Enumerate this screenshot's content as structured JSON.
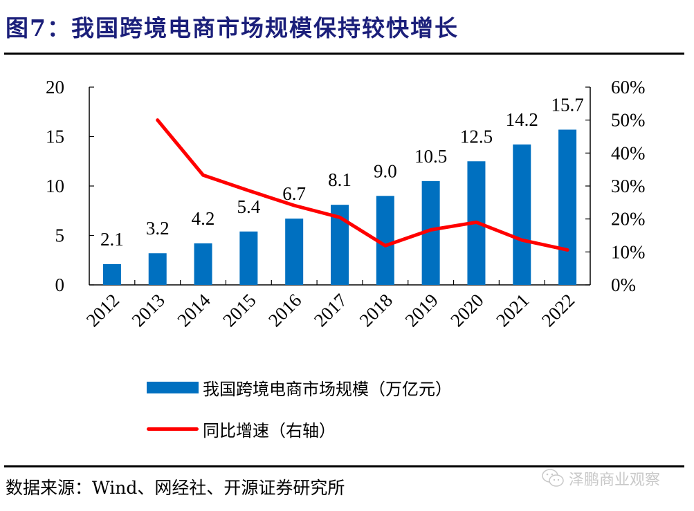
{
  "title": "图7：我国跨境电商市场规模保持较快增长",
  "source": "数据来源：Wind、网经社、开源证券研究所",
  "watermark": {
    "text": "泽鹏商业观察",
    "icon": "wechat-icon"
  },
  "colors": {
    "bar": "#0070c0",
    "line": "#ff0000",
    "title": "#1b1f7a"
  },
  "chart_data": {
    "type": "bar",
    "title": "我国跨境电商市场规模保持较快增长",
    "categories": [
      "2012",
      "2013",
      "2014",
      "2015",
      "2016",
      "2017",
      "2018",
      "2019",
      "2020",
      "2021",
      "2022"
    ],
    "series": [
      {
        "name": "我国跨境电商市场规模（万亿元）",
        "type": "bar",
        "axis": "left",
        "values": [
          2.1,
          3.2,
          4.2,
          5.4,
          6.7,
          8.1,
          9.0,
          10.5,
          12.5,
          14.2,
          15.7
        ],
        "labels": [
          "2.1",
          "3.2",
          "4.2",
          "5.4",
          "6.7",
          "8.1",
          "9.0",
          "10.5",
          "12.5",
          "14.2",
          "15.7"
        ]
      },
      {
        "name": "同比增速（右轴）",
        "type": "line",
        "axis": "right",
        "values": [
          null,
          50.0,
          33.3,
          28.6,
          24.1,
          20.5,
          11.9,
          16.7,
          19.0,
          13.6,
          10.6
        ]
      }
    ],
    "y_left": {
      "lim": [
        0,
        20
      ],
      "ticks": [
        "0",
        "5",
        "10",
        "15",
        "20"
      ],
      "tick_values": [
        0,
        5,
        10,
        15,
        20
      ]
    },
    "y_right": {
      "lim": [
        0,
        60
      ],
      "ticks": [
        "0%",
        "10%",
        "20%",
        "30%",
        "40%",
        "50%",
        "60%"
      ],
      "tick_values": [
        0,
        10,
        20,
        30,
        40,
        50,
        60
      ]
    },
    "xlabel": "",
    "ylabel": "",
    "grid": false,
    "legend_position": "bottom"
  }
}
